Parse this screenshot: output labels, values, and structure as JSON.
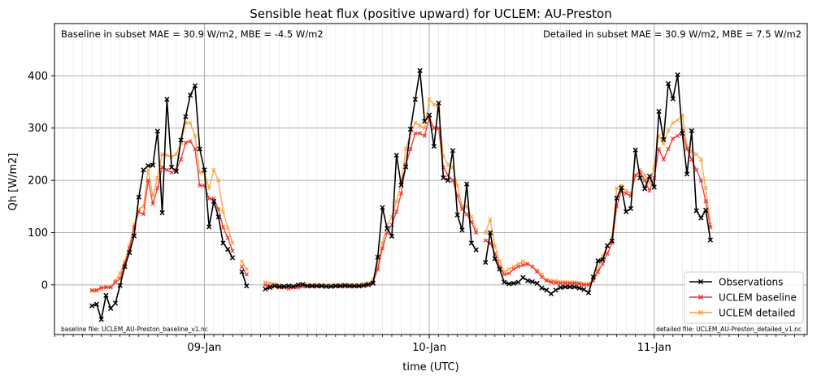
{
  "chart_data": {
    "type": "line",
    "title": "Sensible heat flux (positive upward) for UCLEM: AU-Preston",
    "xlabel": "time (UTC)",
    "ylabel": "Qh [W/m2]",
    "ylim": [
      -95,
      500
    ],
    "yticks": [
      0,
      100,
      200,
      300,
      400
    ],
    "x_start": "2003-01-08T12:00",
    "x_step_hours": 0.5,
    "xticks": [
      {
        "value": "2003-01-09T00:00",
        "label": "09-Jan"
      },
      {
        "value": "2003-01-10T00:00",
        "label": "10-Jan"
      },
      {
        "value": "2003-01-11T00:00",
        "label": "11-Jan"
      }
    ],
    "xlim": [
      "2003-01-08T08:00",
      "2003-01-11T16:20"
    ],
    "grid": true,
    "minor_vertical_grid": "hourly",
    "legend_position": "bottom-right",
    "annotations": {
      "left": "Baseline in subset MAE = 30.9 W/m2, MBE = -4.5 W/m2",
      "right": "Detailed in subset MAE = 30.9 W/m2, MBE = 7.5 W/m2",
      "file_left": "baseline file: UCLEM_AU-Preston_baseline_v1.nc",
      "file_right": "detailed file: UCLEM_AU-Preston_detailed_v1.nc"
    },
    "series": [
      {
        "name": "Observations",
        "color": "#000000",
        "values": [
          -40,
          -37,
          -66,
          -20,
          -45,
          -35,
          -1,
          35,
          62,
          94,
          168,
          220,
          228,
          229,
          294,
          138,
          355,
          225,
          217,
          277,
          322,
          363,
          381,
          260,
          220,
          111,
          160,
          130,
          80,
          68,
          52,
          null,
          25,
          -2,
          null,
          null,
          null,
          -8,
          -5,
          -2,
          -3,
          -3,
          -2,
          -3,
          0,
          1,
          -2,
          -2,
          -2,
          -2,
          -3,
          -3,
          -2,
          -2,
          -1,
          -2,
          -2,
          -2,
          -1,
          1,
          3,
          53,
          148,
          108,
          93,
          248,
          191,
          226,
          298,
          355,
          410,
          313,
          325,
          265,
          348,
          205,
          200,
          257,
          134,
          105,
          193,
          80,
          67,
          null,
          43,
          100,
          50,
          30,
          5,
          2,
          3,
          5,
          14,
          8,
          6,
          3,
          -6,
          -10,
          -17,
          -10,
          -5,
          -4,
          -4,
          -4,
          -6,
          -9,
          -15,
          15,
          46,
          48,
          75,
          84,
          166,
          186,
          140,
          146,
          258,
          205,
          184,
          208,
          187,
          332,
          278,
          385,
          356,
          402,
          290,
          212,
          295,
          142,
          128,
          143,
          86
        ]
      },
      {
        "name": "UCLEM baseline",
        "color": "#ee2d2d",
        "values": [
          -10,
          -10,
          -5,
          -5,
          -5,
          5,
          12,
          40,
          70,
          110,
          140,
          135,
          200,
          155,
          185,
          225,
          220,
          215,
          220,
          240,
          272,
          275,
          260,
          190,
          190,
          165,
          165,
          145,
          110,
          90,
          65,
          null,
          35,
          20,
          null,
          null,
          null,
          0,
          -2,
          -3,
          -5,
          -5,
          -7,
          -5,
          -5,
          -3,
          -3,
          -3,
          -3,
          -3,
          -3,
          -3,
          -3,
          -3,
          -3,
          -3,
          -3,
          -3,
          -2,
          -1,
          5,
          30,
          70,
          100,
          115,
          140,
          175,
          230,
          260,
          290,
          290,
          285,
          320,
          300,
          300,
          225,
          210,
          200,
          170,
          145,
          135,
          120,
          100,
          null,
          85,
          80,
          60,
          35,
          20,
          22,
          30,
          35,
          38,
          40,
          35,
          25,
          15,
          8,
          5,
          4,
          3,
          3,
          3,
          3,
          2,
          0,
          0,
          8,
          25,
          40,
          60,
          80,
          150,
          180,
          175,
          170,
          210,
          215,
          200,
          180,
          205,
          260,
          240,
          260,
          280,
          285,
          295,
          260,
          240,
          220,
          200,
          160,
          110
        ]
      },
      {
        "name": "UCLEM detailed",
        "color": "#f7a13a",
        "values": [
          -12,
          -12,
          -8,
          -3,
          -3,
          8,
          22,
          45,
          75,
          115,
          145,
          150,
          220,
          170,
          205,
          250,
          248,
          245,
          250,
          272,
          310,
          310,
          285,
          215,
          215,
          185,
          220,
          200,
          140,
          110,
          80,
          null,
          45,
          30,
          null,
          null,
          null,
          5,
          3,
          2,
          0,
          -2,
          -3,
          -2,
          -2,
          0,
          0,
          0,
          0,
          0,
          0,
          0,
          0,
          0,
          0,
          0,
          0,
          0,
          2,
          3,
          10,
          38,
          80,
          115,
          130,
          160,
          195,
          260,
          290,
          310,
          305,
          300,
          355,
          345,
          335,
          245,
          230,
          225,
          190,
          150,
          150,
          130,
          105,
          null,
          100,
          125,
          75,
          45,
          25,
          30,
          35,
          40,
          45,
          40,
          35,
          28,
          20,
          10,
          8,
          8,
          6,
          6,
          5,
          5,
          4,
          2,
          2,
          12,
          30,
          55,
          75,
          90,
          185,
          190,
          180,
          175,
          210,
          220,
          210,
          195,
          225,
          285,
          270,
          295,
          310,
          315,
          325,
          265,
          255,
          250,
          240,
          185,
          115
        ]
      }
    ]
  }
}
